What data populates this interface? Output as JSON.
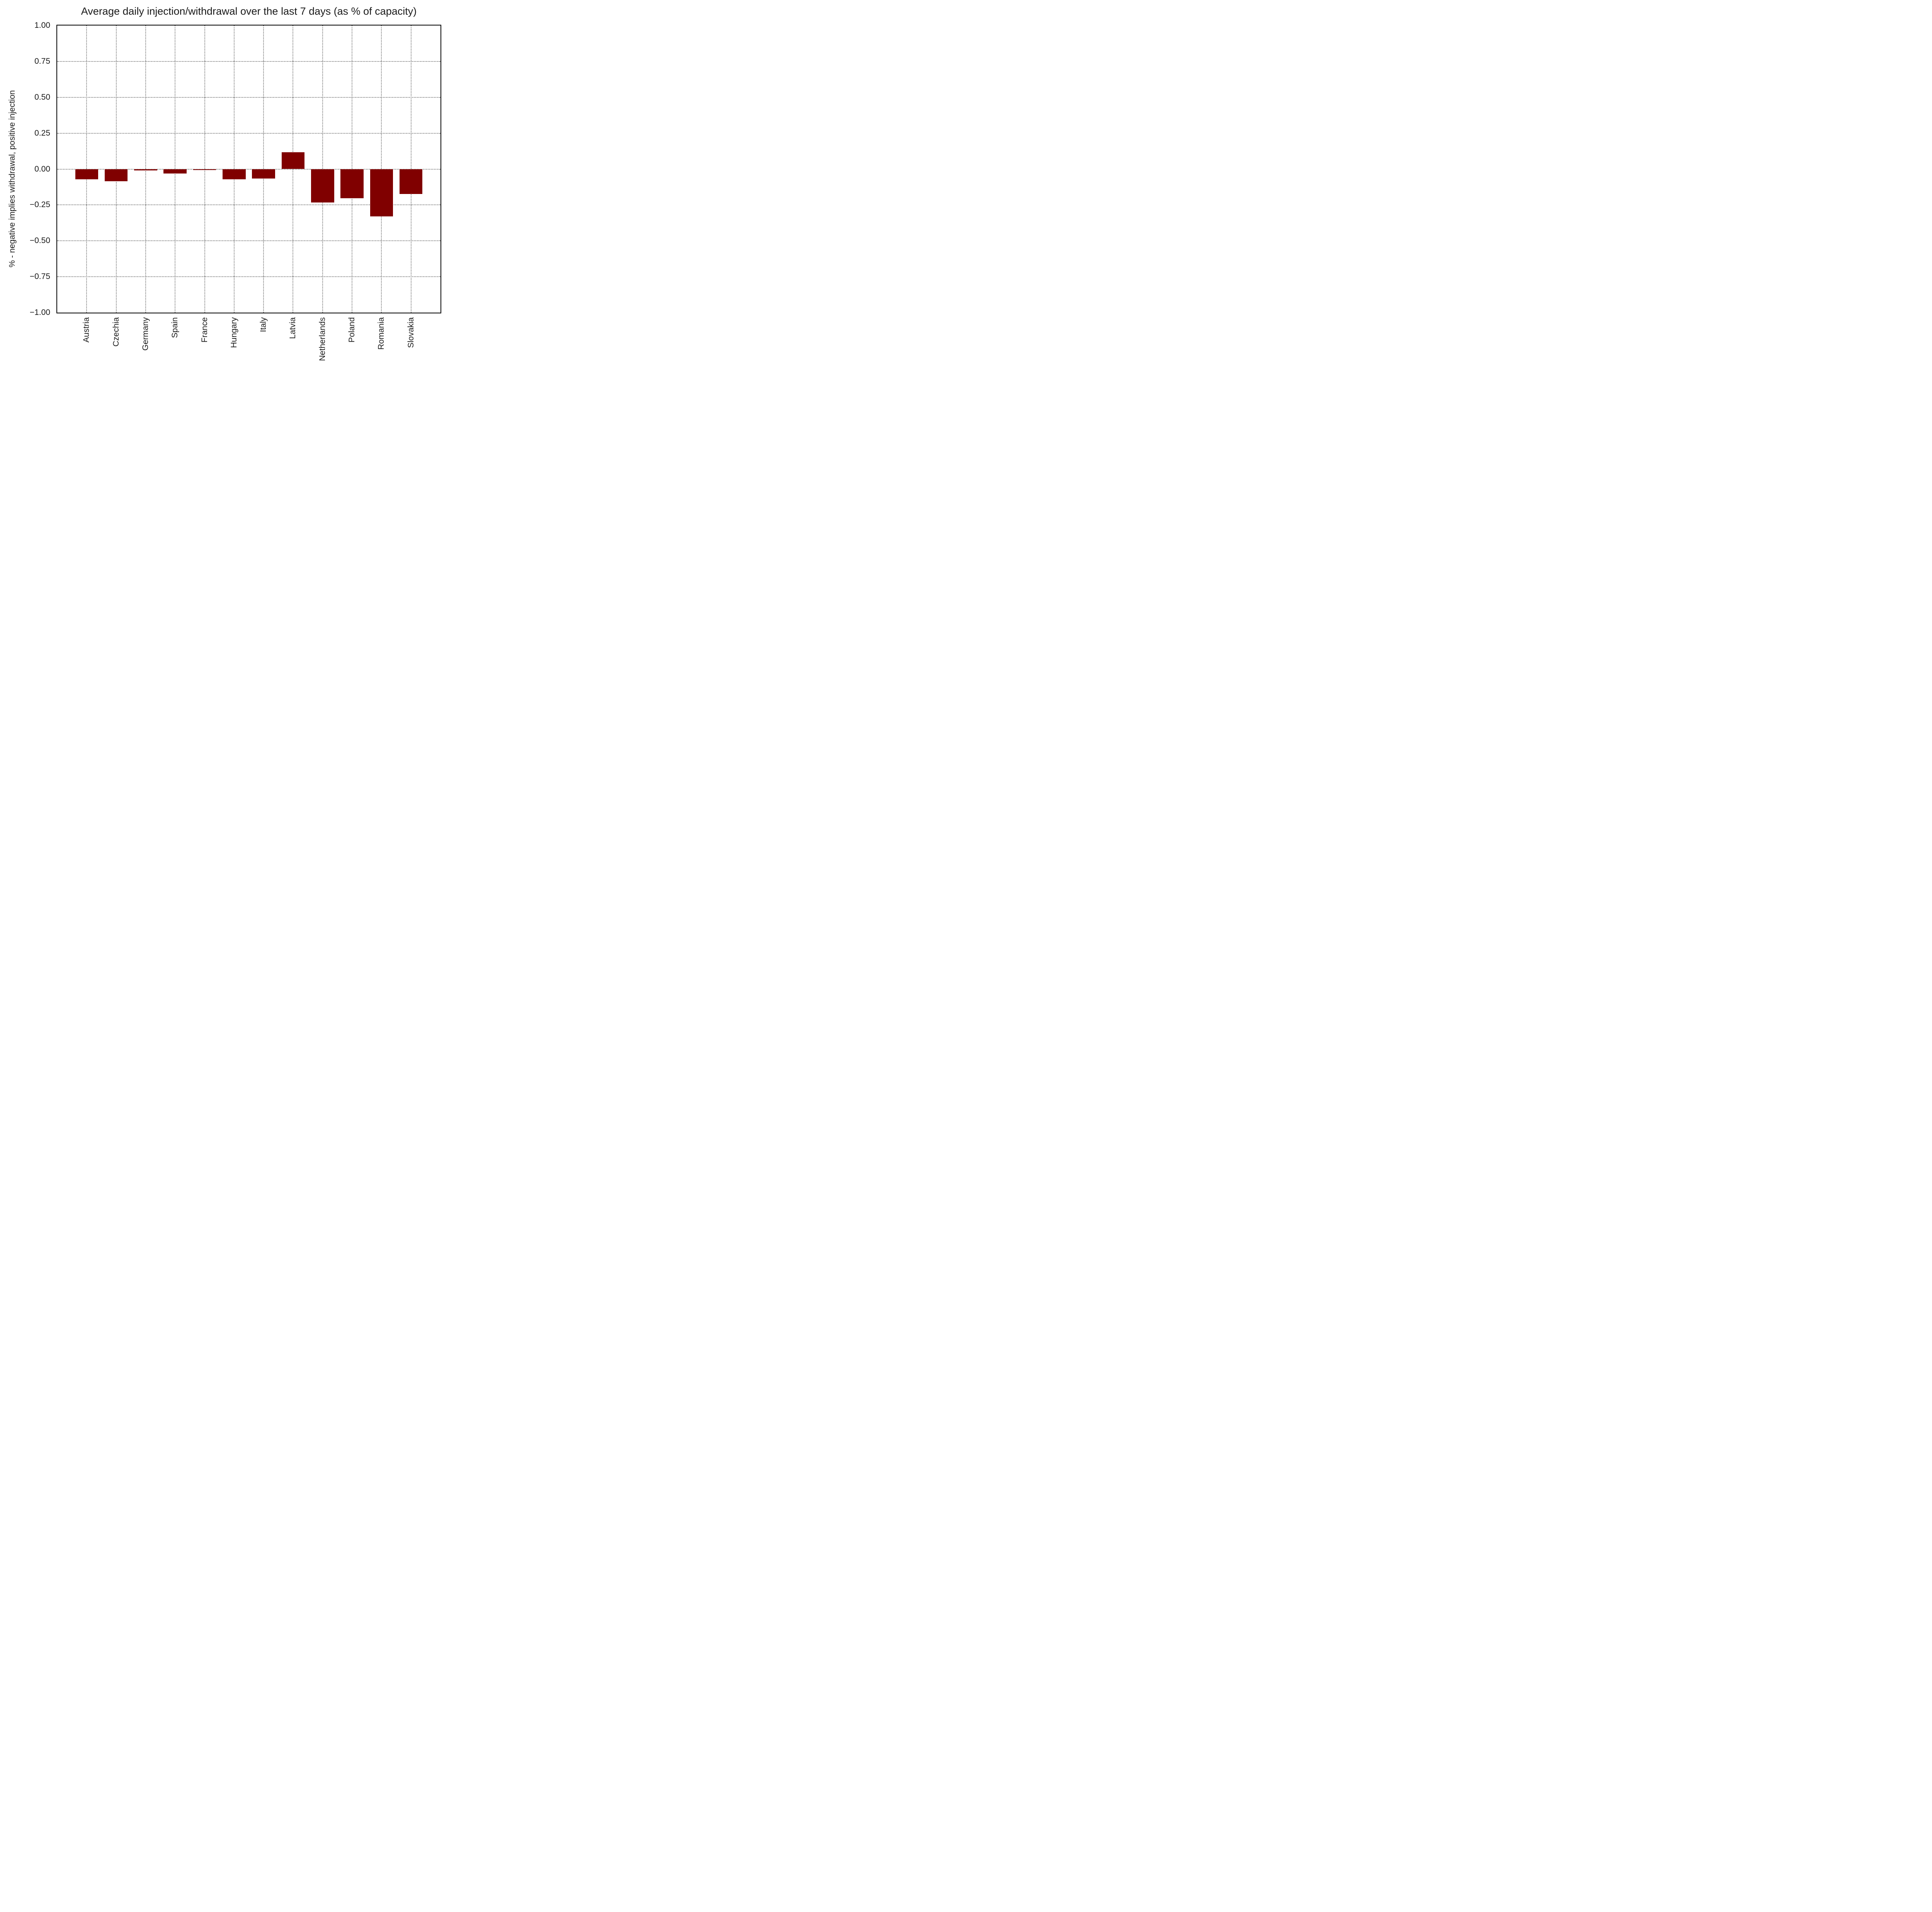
{
  "chart_data": {
    "type": "bar",
    "title": "Average daily injection/withdrawal over the last 7 days (as % of capacity)",
    "xlabel": "",
    "ylabel": "% - negative implies withdrawal, positive injection",
    "categories": [
      "Austria",
      "Czechia",
      "Germany",
      "Spain",
      "France",
      "Hungary",
      "Italy",
      "Latvia",
      "Netherlands",
      "Poland",
      "Romania",
      "Slovakia"
    ],
    "values": [
      -0.07,
      -0.086,
      -0.01,
      -0.031,
      -0.006,
      -0.07,
      -0.066,
      0.118,
      -0.232,
      -0.204,
      -0.33,
      -0.174
    ],
    "ylim": [
      -1.0,
      1.0
    ],
    "yticks": {
      "values": [
        1.0,
        0.75,
        0.5,
        0.25,
        0.0,
        -0.25,
        -0.5,
        -0.75,
        -1.0
      ],
      "labels": [
        "1.00",
        "0.75",
        "0.50",
        "0.25",
        "0.00",
        "−0.25",
        "−0.50",
        "−0.75",
        "−1.00"
      ]
    },
    "grid": {
      "style": "dotted",
      "axes": "both",
      "color": "#7a7a7a"
    },
    "legend": "none",
    "bar_color": "#800000",
    "bar_relative_width": 0.78,
    "axis_color": "#000000",
    "text_color": "#1a1a1a",
    "background_color": "#ffffff"
  }
}
